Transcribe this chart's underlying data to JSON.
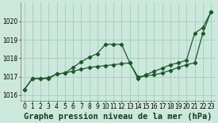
{
  "title": "Graphe pression niveau de la mer (hPa)",
  "bg_color": "#cce8dc",
  "grid_color": "#9ecfbe",
  "line_color": "#1a5c28",
  "x_ticks": [
    0,
    1,
    2,
    3,
    4,
    5,
    6,
    7,
    8,
    9,
    10,
    11,
    12,
    13,
    14,
    15,
    16,
    17,
    18,
    19,
    20,
    21,
    22,
    23
  ],
  "ylim": [
    1015.7,
    1021.0
  ],
  "yticks": [
    1016,
    1017,
    1018,
    1019,
    1020
  ],
  "series1_x": [
    0,
    1,
    2,
    3,
    4,
    5,
    6,
    7,
    8,
    9,
    10,
    11,
    12,
    13,
    14,
    15,
    16,
    17,
    18,
    19,
    20,
    21,
    22,
    23
  ],
  "series1_y": [
    1016.3,
    1016.9,
    1016.9,
    1016.9,
    1017.15,
    1017.2,
    1017.5,
    1017.8,
    1018.05,
    1018.25,
    1018.75,
    1018.75,
    1018.75,
    1017.75,
    1016.9,
    1017.1,
    1017.3,
    1017.45,
    1017.65,
    1017.75,
    1017.9,
    1019.35,
    1019.65,
    1020.5
  ],
  "series2_x": [
    0,
    1,
    2,
    3,
    4,
    5,
    6,
    7,
    8,
    9,
    10,
    11,
    12,
    13,
    14,
    15,
    16,
    17,
    18,
    19,
    20,
    21,
    22,
    23
  ],
  "series2_y": [
    1016.3,
    1016.9,
    1016.9,
    1016.95,
    1017.15,
    1017.2,
    1017.3,
    1017.4,
    1017.5,
    1017.55,
    1017.6,
    1017.65,
    1017.7,
    1017.75,
    1017.0,
    1017.05,
    1017.1,
    1017.2,
    1017.35,
    1017.5,
    1017.65,
    1017.75,
    1019.35,
    1020.5
  ],
  "title_fontsize": 7.5,
  "tick_fontsize": 5.5,
  "marker_size": 2.2,
  "line_width": 0.9
}
